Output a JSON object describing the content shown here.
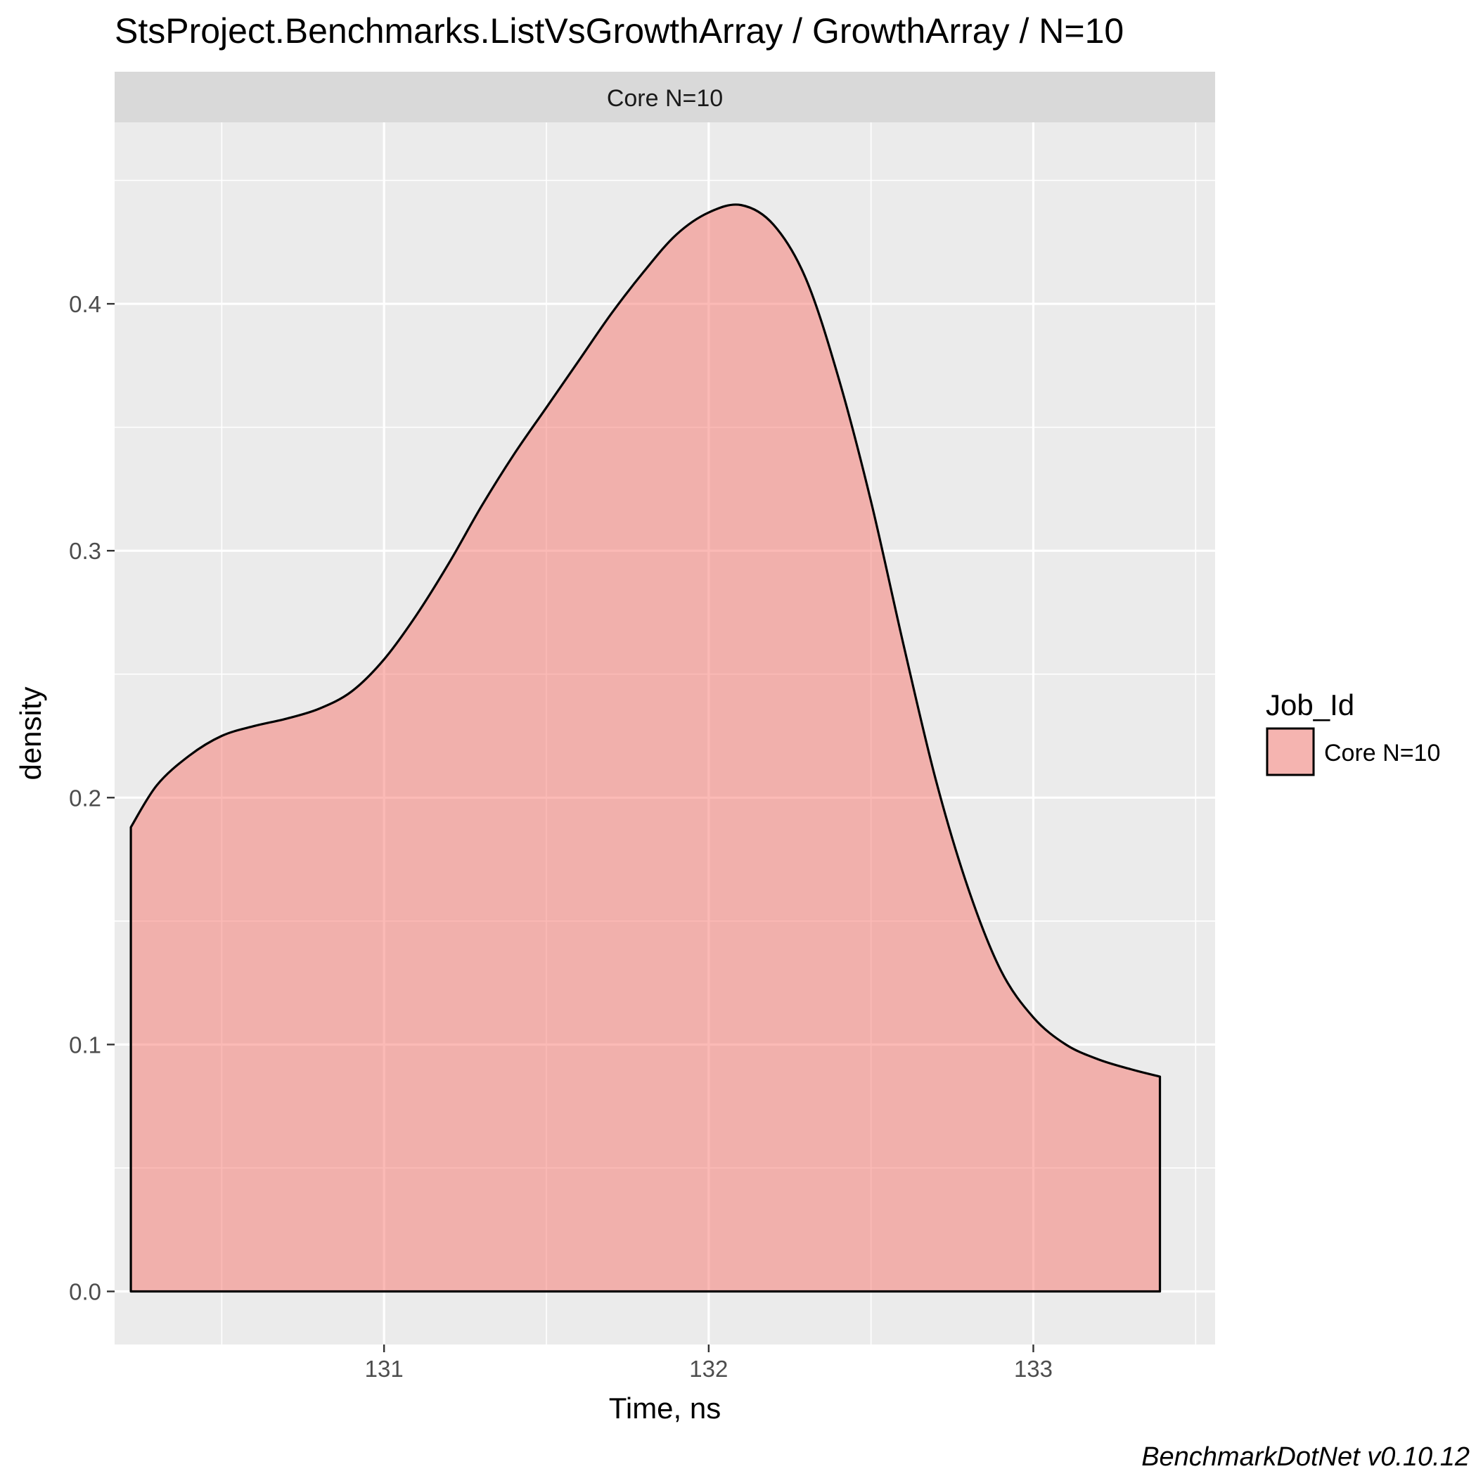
{
  "chart_data": {
    "type": "area",
    "title": "StsProject.Benchmarks.ListVsGrowthArray / GrowthArray / N=10",
    "facet_label": "Core N=10",
    "xlabel": "Time, ns",
    "ylabel": "density",
    "xlim": [
      130.17,
      133.56
    ],
    "ylim": [
      -0.0215,
      0.4735
    ],
    "x_ticks": [
      131,
      132,
      133
    ],
    "x_tick_labels": [
      "131",
      "132",
      "133"
    ],
    "x_minor_ticks": [
      130.5,
      131.5,
      132.5,
      133.5
    ],
    "y_ticks": [
      0.0,
      0.1,
      0.2,
      0.3,
      0.4
    ],
    "y_tick_labels": [
      "0.0",
      "0.1",
      "0.2",
      "0.3",
      "0.4"
    ],
    "y_minor_ticks": [
      0.05,
      0.15,
      0.25,
      0.35,
      0.45
    ],
    "grid": true,
    "legend": {
      "title": "Job_Id",
      "position": "right",
      "entries": [
        "Core N=10"
      ]
    },
    "series": [
      {
        "name": "Core N=10",
        "fill_color": "#F8766D",
        "fill_opacity": 0.5,
        "stroke_color": "#000000",
        "x": [
          130.22,
          130.3,
          130.4,
          130.5,
          130.6,
          130.7,
          130.8,
          130.9,
          131.0,
          131.1,
          131.2,
          131.3,
          131.4,
          131.5,
          131.6,
          131.7,
          131.8,
          131.9,
          132.0,
          132.1,
          132.2,
          132.3,
          132.4,
          132.5,
          132.6,
          132.7,
          132.8,
          132.9,
          133.0,
          133.1,
          133.2,
          133.3,
          133.39
        ],
        "y": [
          0.188,
          0.205,
          0.217,
          0.225,
          0.229,
          0.232,
          0.236,
          0.243,
          0.256,
          0.274,
          0.295,
          0.318,
          0.339,
          0.358,
          0.377,
          0.396,
          0.413,
          0.428,
          0.437,
          0.44,
          0.432,
          0.41,
          0.37,
          0.32,
          0.262,
          0.207,
          0.163,
          0.13,
          0.111,
          0.1,
          0.094,
          0.09,
          0.087
        ]
      }
    ]
  },
  "caption": "BenchmarkDotNet v0.10.12"
}
